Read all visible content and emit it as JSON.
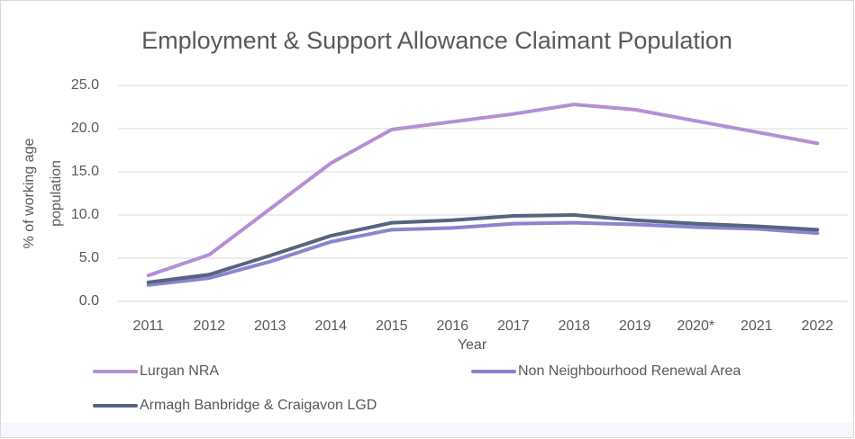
{
  "chart_data": {
    "type": "line",
    "title": "Employment & Support Allowance Claimant Population",
    "x_label": "Year",
    "y_label": [
      "% of working age",
      "population"
    ],
    "categories": [
      "2011",
      "2012",
      "2013",
      "2014",
      "2015",
      "2016",
      "2017",
      "2018",
      "2019",
      "2020*",
      "2021",
      "2022"
    ],
    "series": [
      {
        "name": "Lurgan NRA",
        "color": "#b48fd5",
        "values": [
          3.0,
          5.4,
          10.7,
          16.0,
          19.9,
          20.8,
          21.7,
          22.8,
          22.2,
          20.9,
          19.6,
          18.3
        ]
      },
      {
        "name": "Non Neighbourhood Renewal Area",
        "color": "#8985cf",
        "values": [
          1.9,
          2.7,
          4.6,
          6.9,
          8.3,
          8.5,
          9.0,
          9.1,
          8.9,
          8.6,
          8.4,
          7.9
        ]
      },
      {
        "name": "Armagh Banbridge & Craigavon LGD",
        "color": "#56657f",
        "values": [
          2.2,
          3.1,
          5.3,
          7.6,
          9.1,
          9.4,
          9.9,
          10.0,
          9.4,
          9.0,
          8.7,
          8.3
        ]
      }
    ],
    "ylim": [
      0,
      25
    ],
    "yticks": [
      {
        "value": 0,
        "label": "0.0"
      },
      {
        "value": 5,
        "label": "5.0"
      },
      {
        "value": 10,
        "label": "10.0"
      },
      {
        "value": 15,
        "label": "15.0"
      },
      {
        "value": 20,
        "label": "20.0"
      },
      {
        "value": 25,
        "label": "25.0"
      }
    ],
    "grid": true,
    "legend": "bottom"
  }
}
